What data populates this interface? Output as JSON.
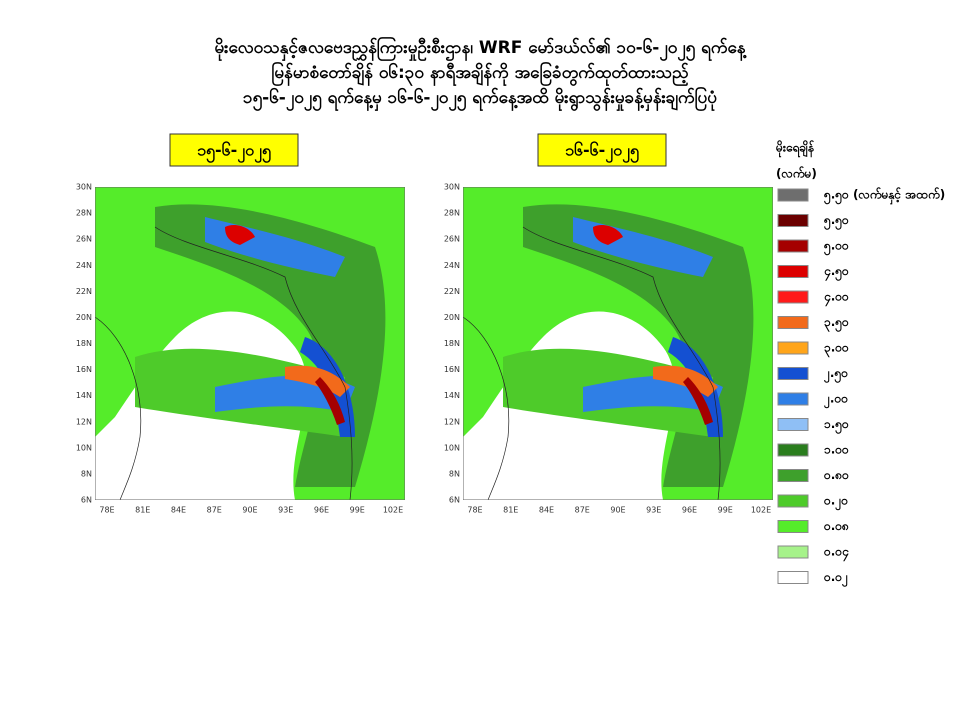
{
  "header": {
    "title_lines": [
      "မိုးလေဝသနှင့်ဇလဗေဒညွှန်ကြားမှုဦးစီးဌာန၊ WRF မော်ဒယ်လ်၏ ၁၀-၆-၂၀၂၅ ရက်နေ့",
      "မြန်မာစံတော်ချိန် ၀၆:၃၀ နာရီအချိန်ကို အခြေခံတွက်ထုတ်ထားသည့်",
      "၁၅-၆-၂၀၂၅ ရက်နေ့မှ ၁၆-၆-၂၀၂၅ ရက်နေ့အထိ မိုးရွာသွန်းမှုခန့်မှန်းချက်ပြပုံ"
    ]
  },
  "maps": [
    {
      "date": "၁၅-၆-၂၀၂၅",
      "lat_labels": [
        "30N",
        "28N",
        "26N",
        "24N",
        "22N",
        "20N",
        "18N",
        "16N",
        "14N",
        "12N",
        "10N",
        "8N",
        "6N"
      ],
      "lon_labels": [
        "78E",
        "81E",
        "84E",
        "87E",
        "90E",
        "93E",
        "96E",
        "99E",
        "102E"
      ]
    },
    {
      "date": "၁၆-၆-၂၀၂၅",
      "lat_labels": [
        "30N",
        "28N",
        "26N",
        "24N",
        "22N",
        "20N",
        "18N",
        "16N",
        "14N",
        "12N",
        "10N",
        "8N",
        "6N"
      ],
      "lon_labels": [
        "78E",
        "81E",
        "84E",
        "87E",
        "90E",
        "93E",
        "96E",
        "99E",
        "102E"
      ]
    }
  ],
  "legend": {
    "title": "မိုးရေချိန်",
    "unit": "(လက်မ)",
    "items": [
      {
        "label": "၅.၅၀ (လက်မနှင့် အထက်)",
        "color": "#6e6e6e"
      },
      {
        "label": "၅.၅၀",
        "color": "#6b0000"
      },
      {
        "label": "၅.၀၀",
        "color": "#a50000"
      },
      {
        "label": "၄.၅၀",
        "color": "#dc0000"
      },
      {
        "label": "၄.၀၀",
        "color": "#ff1a1a"
      },
      {
        "label": "၃.၅၀",
        "color": "#f26a1b"
      },
      {
        "label": "၃.၀၀",
        "color": "#ffa51a"
      },
      {
        "label": "၂.၅၀",
        "color": "#1450d2"
      },
      {
        "label": "၂.၀၀",
        "color": "#2f7fe6"
      },
      {
        "label": "၁.၅၀",
        "color": "#8fbff5"
      },
      {
        "label": "၁.၀၀",
        "color": "#2a7d1e"
      },
      {
        "label": "၀.၈၀",
        "color": "#3ea02c"
      },
      {
        "label": "၀.၂၀",
        "color": "#4ecb2a"
      },
      {
        "label": "၀.၀၈",
        "color": "#55ec2a"
      },
      {
        "label": "၀.၀၄",
        "color": "#a6f28a"
      },
      {
        "label": "၀.၀၂",
        "color": "#ffffff"
      }
    ]
  }
}
